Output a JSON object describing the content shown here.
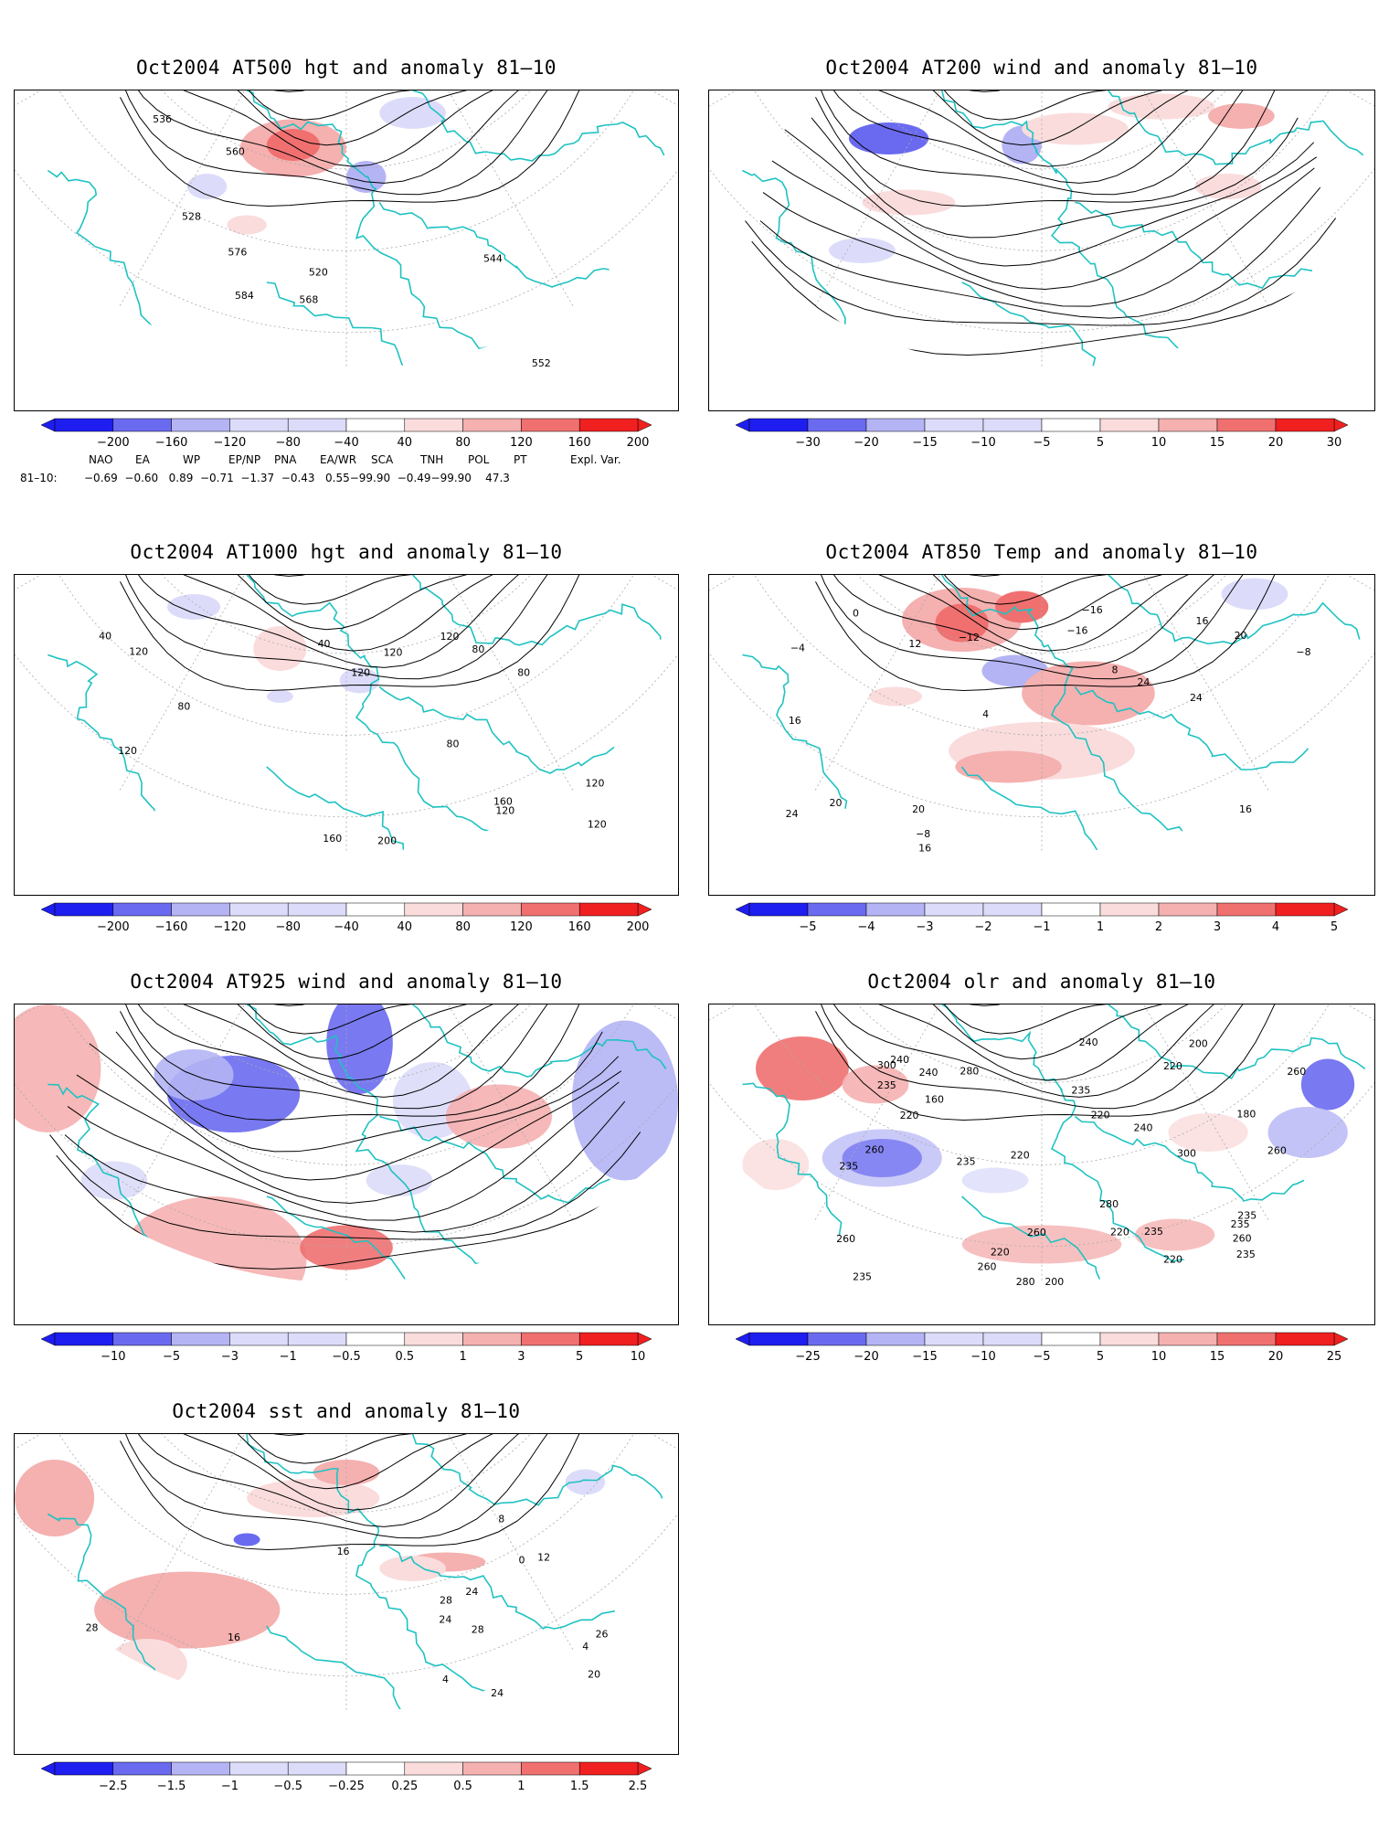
{
  "panels": [
    {
      "id": "p500",
      "title": "Oct2004 AT500 hgt and anomaly 81–10",
      "colorbar": [
        "−200",
        "−160",
        "−120",
        "−80",
        "−40",
        "40",
        "80",
        "120",
        "160",
        "200"
      ],
      "contour_labels": [
        "520",
        "528",
        "536",
        "544",
        "552",
        "560",
        "568",
        "576",
        "584"
      ],
      "kind": "hgt"
    },
    {
      "id": "p200",
      "title": "Oct2004 AT200 wind and anomaly 81–10",
      "colorbar": [
        "−30",
        "−20",
        "−15",
        "−10",
        "−5",
        "5",
        "10",
        "15",
        "20",
        "30"
      ],
      "contour_labels": [],
      "kind": "wind"
    },
    {
      "id": "p1000",
      "title": "Oct2004 AT1000 hgt and anomaly 81–10",
      "colorbar": [
        "−200",
        "−160",
        "−120",
        "−80",
        "−40",
        "40",
        "80",
        "120",
        "160",
        "200"
      ],
      "contour_labels": [
        "120",
        "120",
        "40",
        "80",
        "160",
        "40",
        "200",
        "120",
        "80",
        "120",
        "160",
        "120",
        "80",
        "120",
        "120",
        "80",
        "120"
      ],
      "kind": "hgt1000"
    },
    {
      "id": "p850",
      "title": "Oct2004 AT850 Temp and anomaly 81–10",
      "colorbar": [
        "−5",
        "−4",
        "−3",
        "−2",
        "−1",
        "1",
        "2",
        "3",
        "4",
        "5"
      ],
      "contour_labels": [
        "−16",
        "−16",
        "−8",
        "−12",
        "−8",
        "−4",
        "0",
        "4",
        "8",
        "12",
        "16",
        "20",
        "24",
        "20",
        "16",
        "24",
        "24",
        "16",
        "20",
        "16"
      ],
      "kind": "temp"
    },
    {
      "id": "p925",
      "title": "Oct2004 AT925 wind and anomaly 81–10",
      "colorbar": [
        "−10",
        "−5",
        "−3",
        "−1",
        "−0.5",
        "0.5",
        "1",
        "3",
        "5",
        "10"
      ],
      "contour_labels": [],
      "kind": "wind925"
    },
    {
      "id": "polr",
      "title": "Oct2004 olr and anomaly 81–10",
      "colorbar": [
        "−25",
        "−20",
        "−15",
        "−10",
        "−5",
        "5",
        "10",
        "15",
        "20",
        "25"
      ],
      "contour_labels": [
        "220",
        "260",
        "180",
        "220",
        "235",
        "235",
        "160",
        "200",
        "200",
        "220",
        "220",
        "235",
        "240",
        "240",
        "220",
        "235",
        "235",
        "220",
        "260",
        "240",
        "235",
        "260",
        "300",
        "280",
        "280",
        "260",
        "235",
        "240",
        "260",
        "280",
        "260",
        "220",
        "235",
        "300",
        "235",
        "260"
      ],
      "kind": "olr"
    },
    {
      "id": "psst",
      "title": "Oct2004 sst and anomaly 81–10",
      "colorbar": [
        "−2.5",
        "−1.5",
        "−1",
        "−0.5",
        "−0.25",
        "0.25",
        "0.5",
        "1",
        "1.5",
        "2.5"
      ],
      "contour_labels": [
        "24",
        "26",
        "0",
        "4",
        "4",
        "8",
        "12",
        "16",
        "20",
        "24",
        "24",
        "28",
        "28",
        "28",
        "16"
      ],
      "kind": "sst"
    }
  ],
  "indices": {
    "headers": [
      "NAO",
      "EA",
      "WP",
      "EP/NP",
      "PNA",
      "EA/WR",
      "SCA",
      "TNH",
      "POL",
      "PT",
      "Expl. Var."
    ],
    "row_label": "81–10:",
    "values": "−0.69  −0.60   0.89  −0.71  −1.37  −0.43   0.55−99.90  −0.49−99.90    47.3"
  },
  "colors": {
    "blue_dark": "#1e1ef0",
    "blue_mid": "#6a6af0",
    "blue_light": "#b4b4f5",
    "blue_pale": "#dcdcfa",
    "red_pale": "#fadcdc",
    "red_light": "#f5b0b0",
    "red_mid": "#f07070",
    "red_dark": "#f02020",
    "coast": "#1fc2c2"
  }
}
